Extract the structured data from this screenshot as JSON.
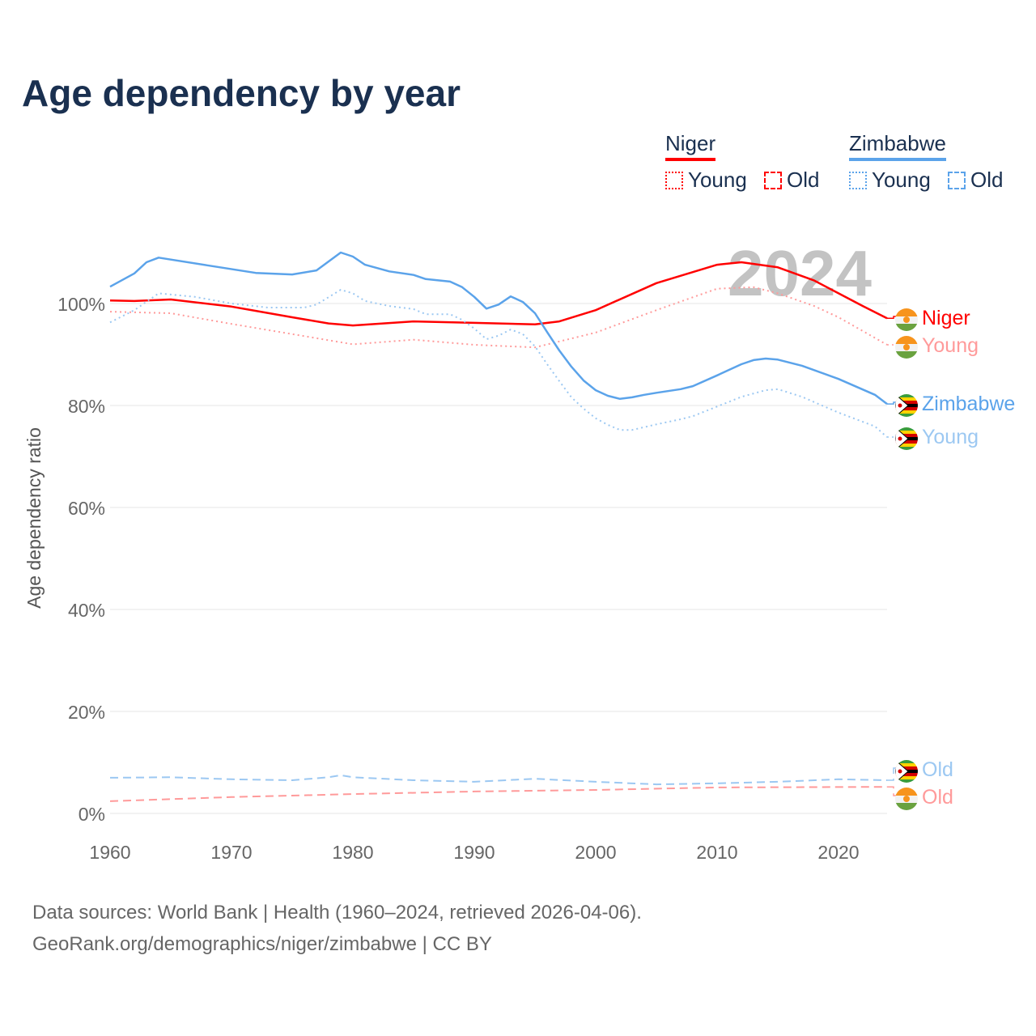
{
  "chart_data": {
    "type": "line",
    "title": "Age dependency by year",
    "ylabel": "Age dependency ratio",
    "xlabel": "",
    "xlim": [
      1960,
      2024
    ],
    "ylim": [
      0,
      110
    ],
    "x_ticks": [
      "1960",
      "1970",
      "1980",
      "1990",
      "2000",
      "2010",
      "2020"
    ],
    "y_ticks": [
      "0%",
      "20%",
      "40%",
      "60%",
      "80%",
      "100%"
    ],
    "y_tick_values": [
      0,
      20,
      40,
      60,
      80,
      100
    ],
    "grid": true,
    "year_watermark": "2024",
    "legend": {
      "placement": "top-right",
      "groups": [
        {
          "name": "Niger",
          "color": "#ff0000",
          "young": "Young",
          "old": "Old"
        },
        {
          "name": "Zimbabwe",
          "color": "#5ba3ea",
          "young": "Young",
          "old": "Old"
        }
      ]
    },
    "series": [
      {
        "name": "Niger",
        "label": "Niger",
        "country": "Niger",
        "style": "solid",
        "color": "#ff0000",
        "points": [
          [
            1960,
            100.6
          ],
          [
            1962,
            100.5
          ],
          [
            1965,
            100.8
          ],
          [
            1970,
            99.4
          ],
          [
            1975,
            97.3
          ],
          [
            1978,
            96.1
          ],
          [
            1980,
            95.7
          ],
          [
            1985,
            96.5
          ],
          [
            1990,
            96.2
          ],
          [
            1995,
            95.9
          ],
          [
            1997,
            96.5
          ],
          [
            2000,
            98.7
          ],
          [
            2005,
            104
          ],
          [
            2010,
            107.6
          ],
          [
            2012,
            108.1
          ],
          [
            2015,
            107.1
          ],
          [
            2018,
            104.5
          ],
          [
            2020,
            102
          ],
          [
            2022,
            99.5
          ],
          [
            2024,
            97.1
          ]
        ]
      },
      {
        "name": "Niger Young",
        "label": "Young",
        "country": "Niger",
        "style": "dotted",
        "color": "#ff9a9a",
        "points": [
          [
            1960,
            98.4
          ],
          [
            1965,
            98.1
          ],
          [
            1970,
            96
          ],
          [
            1975,
            94
          ],
          [
            1980,
            92
          ],
          [
            1985,
            92.9
          ],
          [
            1990,
            91.9
          ],
          [
            1995,
            91.4
          ],
          [
            2000,
            94.3
          ],
          [
            2005,
            98.7
          ],
          [
            2010,
            102.9
          ],
          [
            2013,
            103.2
          ],
          [
            2015,
            102
          ],
          [
            2018,
            99.5
          ],
          [
            2020,
            97.3
          ],
          [
            2024,
            91.9
          ]
        ]
      },
      {
        "name": "Niger Old",
        "label": "Old",
        "country": "Niger",
        "style": "dashed",
        "color": "#ff9a9a",
        "points": [
          [
            1960,
            2.4
          ],
          [
            1970,
            3.2
          ],
          [
            1980,
            3.8
          ],
          [
            1990,
            4.3
          ],
          [
            2000,
            4.6
          ],
          [
            2010,
            5.1
          ],
          [
            2024,
            5.2
          ]
        ]
      },
      {
        "name": "Zimbabwe",
        "label": "Zimbabwe",
        "country": "Zimbabwe",
        "style": "solid",
        "color": "#5ba3ea",
        "points": [
          [
            1960,
            103.3
          ],
          [
            1962,
            105.9
          ],
          [
            1963,
            108.1
          ],
          [
            1964,
            109
          ],
          [
            1968,
            107.5
          ],
          [
            1972,
            106
          ],
          [
            1975,
            105.7
          ],
          [
            1977,
            106.5
          ],
          [
            1979,
            110
          ],
          [
            1980,
            109.2
          ],
          [
            1981,
            107.6
          ],
          [
            1983,
            106.3
          ],
          [
            1985,
            105.6
          ],
          [
            1986,
            104.8
          ],
          [
            1988,
            104.3
          ],
          [
            1989,
            103.2
          ],
          [
            1990,
            101.3
          ],
          [
            1991,
            99
          ],
          [
            1992,
            99.8
          ],
          [
            1993,
            101.4
          ],
          [
            1994,
            100.3
          ],
          [
            1995,
            98.1
          ],
          [
            1996,
            94.4
          ],
          [
            1997,
            90.8
          ],
          [
            1998,
            87.6
          ],
          [
            1999,
            84.9
          ],
          [
            2000,
            83
          ],
          [
            2001,
            81.9
          ],
          [
            2002,
            81.3
          ],
          [
            2003,
            81.6
          ],
          [
            2004,
            82.1
          ],
          [
            2005,
            82.5
          ],
          [
            2007,
            83.2
          ],
          [
            2008,
            83.8
          ],
          [
            2010,
            85.9
          ],
          [
            2012,
            88.1
          ],
          [
            2013,
            88.9
          ],
          [
            2014,
            89.2
          ],
          [
            2015,
            89
          ],
          [
            2017,
            87.8
          ],
          [
            2020,
            85.2
          ],
          [
            2023,
            82.1
          ],
          [
            2024,
            80.3
          ]
        ]
      },
      {
        "name": "Zimbabwe Young",
        "label": "Young",
        "country": "Zimbabwe",
        "style": "dotted",
        "color": "#9cc8f2",
        "points": [
          [
            1960,
            96.3
          ],
          [
            1962,
            98.7
          ],
          [
            1964,
            102
          ],
          [
            1967,
            101.3
          ],
          [
            1970,
            100
          ],
          [
            1973,
            99.2
          ],
          [
            1976,
            99.2
          ],
          [
            1977,
            99.8
          ],
          [
            1979,
            102.7
          ],
          [
            1980,
            102
          ],
          [
            1981,
            100.5
          ],
          [
            1983,
            99.5
          ],
          [
            1985,
            98.9
          ],
          [
            1986,
            97.9
          ],
          [
            1988,
            97.9
          ],
          [
            1989,
            96.8
          ],
          [
            1990,
            95.1
          ],
          [
            1991,
            93
          ],
          [
            1992,
            93.7
          ],
          [
            1993,
            94.9
          ],
          [
            1994,
            94
          ],
          [
            1995,
            91.6
          ],
          [
            1996,
            88.1
          ],
          [
            1997,
            84.8
          ],
          [
            1998,
            81.6
          ],
          [
            1999,
            79.4
          ],
          [
            2000,
            77.5
          ],
          [
            2001,
            76.2
          ],
          [
            2002,
            75.2
          ],
          [
            2003,
            75.2
          ],
          [
            2005,
            76.3
          ],
          [
            2007,
            77.3
          ],
          [
            2008,
            77.9
          ],
          [
            2010,
            79.8
          ],
          [
            2012,
            81.7
          ],
          [
            2014,
            83
          ],
          [
            2015,
            83.2
          ],
          [
            2017,
            81.7
          ],
          [
            2020,
            78.6
          ],
          [
            2023,
            75.9
          ],
          [
            2024,
            73.8
          ]
        ]
      },
      {
        "name": "Zimbabwe Old",
        "label": "Old",
        "country": "Zimbabwe",
        "style": "dashed",
        "color": "#9cc8f2",
        "points": [
          [
            1960,
            7
          ],
          [
            1965,
            7.1
          ],
          [
            1970,
            6.7
          ],
          [
            1975,
            6.5
          ],
          [
            1978,
            7.1
          ],
          [
            1979,
            7.5
          ],
          [
            1980,
            7.1
          ],
          [
            1985,
            6.5
          ],
          [
            1990,
            6.2
          ],
          [
            1995,
            6.8
          ],
          [
            2000,
            6.2
          ],
          [
            2005,
            5.7
          ],
          [
            2010,
            5.9
          ],
          [
            2015,
            6.2
          ],
          [
            2020,
            6.7
          ],
          [
            2024,
            6.5
          ]
        ]
      }
    ]
  },
  "source": {
    "line1": "Data sources: World Bank | Health (1960–2024, retrieved 2026-04-06).",
    "line2": "GeoRank.org/demographics/niger/zimbabwe | CC BY"
  }
}
